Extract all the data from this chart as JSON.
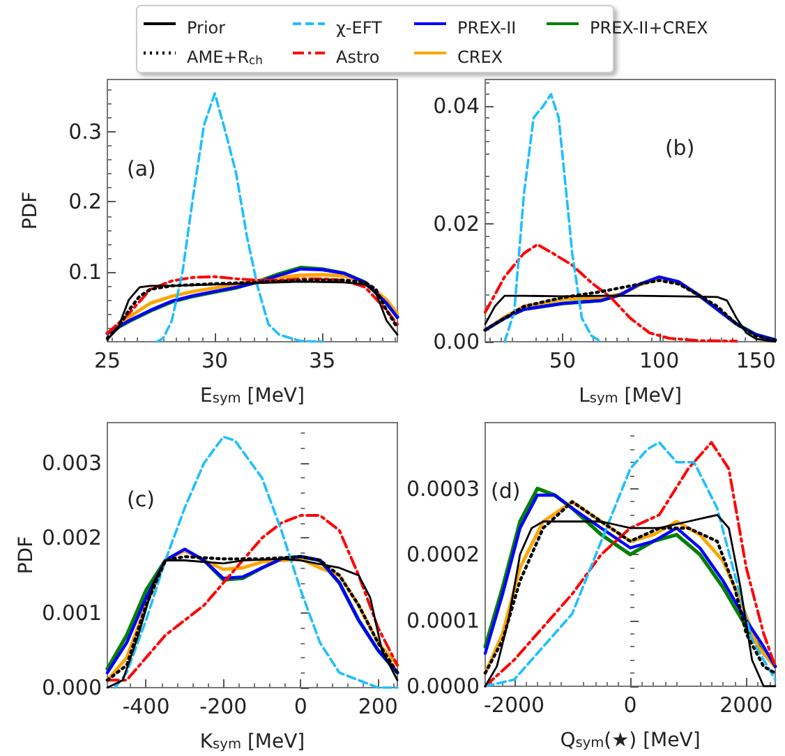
{
  "chart_data": [
    {
      "type": "line",
      "xlabel": "E$_{sym}$ [MeV]",
      "ylabel": "PDF",
      "annotations": [
        "(a)"
      ],
      "xlim": [
        25,
        38.5
      ],
      "ylim": [
        0,
        0.375
      ],
      "xticks": [
        25,
        30,
        35
      ],
      "yticks": [
        0.1,
        0.2,
        0.3
      ],
      "grid": false,
      "legend": "top",
      "marker": "none",
      "series": [
        {
          "name": "Prior",
          "color": "#000000",
          "line_style": "solid",
          "x": [
            25,
            25.5,
            26,
            26.5,
            27,
            28,
            30,
            32,
            34,
            36,
            37,
            37.5,
            38,
            38.5
          ],
          "values": [
            0.003,
            0.02,
            0.06,
            0.078,
            0.08,
            0.08,
            0.082,
            0.084,
            0.086,
            0.085,
            0.082,
            0.07,
            0.03,
            0.01
          ]
        },
        {
          "name": "AME+R$_{ch}$",
          "color": "#000000",
          "line_style": "dotted",
          "x": [
            25,
            25.5,
            26,
            26.5,
            27,
            28,
            30,
            32,
            34,
            36,
            37,
            37.5,
            38,
            38.5
          ],
          "values": [
            0.005,
            0.02,
            0.045,
            0.065,
            0.075,
            0.08,
            0.083,
            0.085,
            0.088,
            0.088,
            0.085,
            0.075,
            0.045,
            0.02
          ]
        },
        {
          "name": "χ-EFT",
          "color": "#1ebfff",
          "line_style": "dashed",
          "x": [
            27.3,
            27.6,
            28,
            28.5,
            29,
            29.5,
            30,
            30.5,
            31,
            31.5,
            32,
            32.5,
            33,
            34,
            35
          ],
          "values": [
            0,
            0.005,
            0.03,
            0.1,
            0.21,
            0.31,
            0.355,
            0.3,
            0.24,
            0.15,
            0.078,
            0.025,
            0.01,
            0.001,
            0
          ]
        },
        {
          "name": "Astro",
          "color": "#ff0000",
          "line_style": "dashdot",
          "x": [
            25,
            26,
            27,
            28,
            29,
            30,
            31,
            32,
            33,
            34,
            35,
            36,
            37,
            38,
            38.5
          ],
          "values": [
            0.012,
            0.04,
            0.075,
            0.087,
            0.092,
            0.093,
            0.09,
            0.088,
            0.088,
            0.09,
            0.09,
            0.088,
            0.078,
            0.045,
            0.025
          ]
        },
        {
          "name": "PREX-II",
          "color": "#0000ff",
          "line_style": "solid",
          "x": [
            25,
            26,
            27,
            28,
            29,
            30,
            31,
            32,
            33,
            34,
            35,
            36,
            37,
            38,
            38.5
          ],
          "values": [
            0.012,
            0.03,
            0.045,
            0.058,
            0.066,
            0.072,
            0.078,
            0.085,
            0.095,
            0.104,
            0.103,
            0.098,
            0.085,
            0.055,
            0.035
          ]
        },
        {
          "name": "CREX",
          "color": "#ffa500",
          "line_style": "solid",
          "x": [
            25,
            26,
            27,
            28,
            29,
            30,
            31,
            32,
            33,
            34,
            35,
            36,
            37,
            38,
            38.5
          ],
          "values": [
            0.012,
            0.035,
            0.055,
            0.065,
            0.072,
            0.077,
            0.082,
            0.087,
            0.092,
            0.095,
            0.096,
            0.094,
            0.085,
            0.06,
            0.04
          ]
        },
        {
          "name": "PREX-II+CREX",
          "color": "#008000",
          "line_style": "solid",
          "x": [
            25,
            26,
            27,
            28,
            29,
            30,
            31,
            32,
            33,
            34,
            35,
            36,
            37,
            38,
            38.5
          ],
          "values": [
            0.012,
            0.029,
            0.044,
            0.057,
            0.065,
            0.071,
            0.077,
            0.086,
            0.097,
            0.106,
            0.104,
            0.098,
            0.085,
            0.055,
            0.035
          ]
        }
      ]
    },
    {
      "type": "line",
      "xlabel": "L$_{sym}$ [MeV]",
      "annotations": [
        "(b)"
      ],
      "xlim": [
        10,
        160
      ],
      "ylim": [
        0,
        0.0445
      ],
      "xticks": [
        50,
        100,
        150
      ],
      "yticks": [
        {
          "value": 0,
          "label": "0.00"
        },
        {
          "value": 0.02,
          "label": "0.02"
        },
        {
          "value": 0.04,
          "label": "0.04"
        }
      ],
      "grid": false,
      "marker": "none",
      "series": [
        {
          "color": "#000000",
          "line_style": "solid",
          "x": [
            10,
            15,
            20,
            30,
            50,
            70,
            90,
            110,
            130,
            135,
            140,
            145,
            150,
            160
          ],
          "values": [
            0.003,
            0.006,
            0.0078,
            0.0078,
            0.0077,
            0.0078,
            0.0078,
            0.0077,
            0.0076,
            0.007,
            0.004,
            0.0015,
            0.0005,
            0
          ]
        },
        {
          "color": "#000000",
          "line_style": "dotted",
          "x": [
            10,
            20,
            30,
            50,
            70,
            90,
            100,
            110,
            120,
            130,
            140,
            150,
            160
          ],
          "values": [
            0.002,
            0.004,
            0.006,
            0.0075,
            0.0085,
            0.0098,
            0.0104,
            0.0098,
            0.008,
            0.006,
            0.003,
            0.001,
            0.0002
          ]
        },
        {
          "color": "#1ebfff",
          "line_style": "dashed",
          "x": [
            20,
            25,
            30,
            35,
            40,
            44,
            48,
            52,
            55,
            60,
            65,
            70
          ],
          "values": [
            0,
            0.005,
            0.025,
            0.038,
            0.04,
            0.042,
            0.038,
            0.025,
            0.015,
            0.004,
            0.001,
            0
          ]
        },
        {
          "color": "#ff0000",
          "line_style": "dashdot",
          "x": [
            10,
            15,
            20,
            30,
            37,
            45,
            55,
            65,
            75,
            85,
            95,
            105,
            120,
            140
          ],
          "values": [
            0.005,
            0.008,
            0.011,
            0.015,
            0.0165,
            0.015,
            0.013,
            0.01,
            0.0075,
            0.004,
            0.0015,
            0.0006,
            0.0002,
            0.0001
          ]
        },
        {
          "color": "#0000ff",
          "line_style": "solid",
          "x": [
            10,
            20,
            30,
            50,
            70,
            80,
            90,
            100,
            110,
            120,
            130,
            140,
            150,
            160
          ],
          "values": [
            0.002,
            0.004,
            0.0055,
            0.0065,
            0.007,
            0.008,
            0.0098,
            0.011,
            0.0102,
            0.008,
            0.0055,
            0.003,
            0.0012,
            0.0003
          ]
        },
        {
          "color": "#ffa500",
          "line_style": "solid",
          "x": [
            10,
            20,
            30,
            50,
            70,
            80,
            90,
            100,
            110,
            120,
            130,
            140
          ],
          "values": [
            0.002,
            0.0042,
            0.006,
            0.0072,
            0.0075,
            0.0081,
            0.0097,
            0.0108,
            0.01,
            0.008,
            0.0056,
            0.003
          ]
        },
        {
          "color": "#008000",
          "line_style": "solid",
          "x": [
            10,
            20,
            30,
            50,
            70,
            80,
            90,
            100,
            110,
            120,
            130,
            140,
            150,
            160
          ],
          "values": [
            0.002,
            0.004,
            0.0055,
            0.0065,
            0.007,
            0.008,
            0.0097,
            0.0108,
            0.0101,
            0.008,
            0.0055,
            0.003,
            0.0012,
            0.0003
          ]
        }
      ]
    },
    {
      "type": "line",
      "xlabel": "K$_{sym}$ [MeV]",
      "ylabel": "PDF",
      "annotations": [
        "(c)"
      ],
      "xlim": [
        -500,
        250
      ],
      "ylim": [
        0,
        0.00354
      ],
      "xticks": [
        -400,
        -200,
        0,
        200
      ],
      "yticks": [
        {
          "value": 0,
          "label": "0.000"
        },
        {
          "value": 0.001,
          "label": "0.001"
        },
        {
          "value": 0.002,
          "label": "0.002"
        },
        {
          "value": 0.003,
          "label": "0.003"
        }
      ],
      "grid": false,
      "marker": "none",
      "series": [
        {
          "color": "#000000",
          "line_style": "solid",
          "x": [
            -500,
            -460,
            -420,
            -380,
            -350,
            -300,
            -200,
            -150,
            -50,
            0,
            50,
            100,
            150,
            180,
            210,
            250
          ],
          "values": [
            0,
            0.0001,
            0.0007,
            0.0014,
            0.0017,
            0.0017,
            0.00166,
            0.0017,
            0.00172,
            0.0017,
            0.00165,
            0.0016,
            0.0015,
            0.0012,
            0.0005,
            0.0001
          ]
        },
        {
          "color": "#000000",
          "line_style": "dotted",
          "x": [
            -500,
            -450,
            -400,
            -350,
            -300,
            -200,
            -100,
            0,
            50,
            100,
            150,
            200,
            250
          ],
          "values": [
            0.0001,
            0.0003,
            0.0011,
            0.0017,
            0.00175,
            0.00172,
            0.00172,
            0.00175,
            0.0017,
            0.0015,
            0.0011,
            0.0006,
            0.0002
          ]
        },
        {
          "color": "#1ebfff",
          "line_style": "dashed",
          "x": [
            -480,
            -450,
            -400,
            -350,
            -300,
            -250,
            -200,
            -170,
            -100,
            -50,
            0,
            50,
            100,
            150,
            200,
            250
          ],
          "values": [
            0,
            0.0002,
            0.0009,
            0.0017,
            0.0024,
            0.003,
            0.00335,
            0.0033,
            0.0028,
            0.0021,
            0.0013,
            0.0006,
            0.0002,
            0.0001,
            0,
            0
          ]
        },
        {
          "color": "#ff0000",
          "line_style": "dashdot",
          "x": [
            -500,
            -450,
            -400,
            -350,
            -300,
            -250,
            -200,
            -150,
            -100,
            -50,
            0,
            50,
            100,
            150,
            200,
            250
          ],
          "values": [
            0.0001,
            0.0001,
            0.0004,
            0.0007,
            0.0009,
            0.0011,
            0.0014,
            0.0017,
            0.002,
            0.0022,
            0.0023,
            0.0023,
            0.0021,
            0.0015,
            0.0008,
            0.0003
          ]
        },
        {
          "color": "#0000ff",
          "line_style": "solid",
          "x": [
            -500,
            -450,
            -400,
            -350,
            -300,
            -250,
            -200,
            -150,
            -100,
            -50,
            0,
            50,
            100,
            150,
            200,
            250
          ],
          "values": [
            0.0002,
            0.0006,
            0.0012,
            0.0017,
            0.00185,
            0.0017,
            0.00146,
            0.00148,
            0.0016,
            0.00172,
            0.00175,
            0.0017,
            0.0014,
            0.0009,
            0.0005,
            0.0002
          ]
        },
        {
          "color": "#ffa500",
          "line_style": "solid",
          "x": [
            -500,
            -450,
            -400,
            -350,
            -300,
            -250,
            -200,
            -150,
            -100,
            -50,
            0,
            50,
            100,
            150,
            200,
            250
          ],
          "values": [
            0.0001,
            0.0004,
            0.0011,
            0.0017,
            0.00183,
            0.0017,
            0.00158,
            0.0016,
            0.00168,
            0.0017,
            0.00172,
            0.0016,
            0.0015,
            0.0011,
            0.0006,
            0.0003
          ]
        },
        {
          "color": "#008000",
          "line_style": "solid",
          "x": [
            -500,
            -450,
            -400,
            -350,
            -300,
            -250,
            -200,
            -150,
            -100,
            -50,
            0,
            50,
            100,
            150,
            200,
            250
          ],
          "values": [
            0.00025,
            0.0007,
            0.0013,
            0.0017,
            0.00184,
            0.0017,
            0.00144,
            0.00146,
            0.0016,
            0.00172,
            0.00175,
            0.0017,
            0.0014,
            0.0009,
            0.0005,
            0.0002
          ]
        }
      ]
    },
    {
      "type": "line",
      "xlabel": "Q$_{sym}$(★) [MeV]",
      "annotations": [
        "(d)"
      ],
      "xlim": [
        -2500,
        2500
      ],
      "ylim": [
        0,
        0.0004
      ],
      "xticks": [
        -2000,
        0,
        2000
      ],
      "yticks": [
        {
          "value": 0,
          "label": "0.0000"
        },
        {
          "value": 0.0001,
          "label": "0.0001"
        },
        {
          "value": 0.0002,
          "label": "0.0002"
        },
        {
          "value": 0.0003,
          "label": "0.0003"
        }
      ],
      "grid": false,
      "marker": "none",
      "series": [
        {
          "color": "#000000",
          "line_style": "solid",
          "x": [
            -2500,
            -2300,
            -2100,
            -1900,
            -1700,
            -1500,
            -1000,
            -500,
            0,
            500,
            1000,
            1500,
            1700,
            1900,
            2100,
            2300,
            2500
          ],
          "values": [
            0,
            3e-05,
            0.0001,
            0.0002,
            0.00024,
            0.00025,
            0.00025,
            0.00025,
            0.00024,
            0.00024,
            0.00025,
            0.00026,
            0.00024,
            0.00015,
            4e-05,
            0,
            0
          ]
        },
        {
          "color": "#000000",
          "line_style": "dotted",
          "x": [
            -2500,
            -2200,
            -1900,
            -1500,
            -1000,
            -500,
            0,
            500,
            1000,
            1500,
            1800,
            2000,
            2300,
            2500
          ],
          "values": [
            2e-05,
            7e-05,
            0.00016,
            0.00024,
            0.00028,
            0.00025,
            0.00022,
            0.00024,
            0.00024,
            0.00022,
            0.00015,
            8e-05,
            3e-05,
            2e-05
          ]
        },
        {
          "color": "#1ebfff",
          "line_style": "dashed",
          "x": [
            -2500,
            -2000,
            -1500,
            -1000,
            -500,
            0,
            300,
            500,
            800,
            1100,
            1500,
            1800,
            2100,
            2500
          ],
          "values": [
            0,
            1e-05,
            6e-05,
            0.00011,
            0.00022,
            0.00033,
            0.00036,
            0.00037,
            0.00034,
            0.00034,
            0.00027,
            0.00017,
            7e-05,
            1e-05
          ]
        },
        {
          "color": "#ff0000",
          "line_style": "dashdot",
          "x": [
            -2500,
            -2000,
            -1500,
            -1000,
            -500,
            0,
            500,
            1000,
            1400,
            1700,
            2000,
            2300,
            2500
          ],
          "values": [
            0,
            4e-05,
            9e-05,
            0.00014,
            0.0002,
            0.00024,
            0.00026,
            0.00033,
            0.00037,
            0.00033,
            0.00018,
            8e-05,
            3e-05
          ]
        },
        {
          "color": "#0000ff",
          "line_style": "solid",
          "x": [
            -2500,
            -2200,
            -1900,
            -1600,
            -1300,
            -1000,
            -500,
            0,
            400,
            800,
            1200,
            1600,
            2000,
            2300,
            2500
          ],
          "values": [
            5e-05,
            0.00014,
            0.00024,
            0.00029,
            0.00029,
            0.00027,
            0.00024,
            0.00021,
            0.00022,
            0.00024,
            0.00021,
            0.00016,
            0.0001,
            6e-05,
            3e-05
          ]
        },
        {
          "color": "#ffa500",
          "line_style": "solid",
          "x": [
            -2500,
            -2200,
            -1900,
            -1500,
            -1000,
            -500,
            0,
            400,
            800,
            1200,
            1600,
            1900,
            2200,
            2500
          ],
          "values": [
            2e-05,
            8e-05,
            0.00018,
            0.00025,
            0.00028,
            0.00025,
            0.00022,
            0.00023,
            0.00025,
            0.00023,
            0.00019,
            0.00013,
            6e-05,
            3e-05
          ]
        },
        {
          "color": "#008000",
          "line_style": "solid",
          "x": [
            -2500,
            -2200,
            -1900,
            -1600,
            -1300,
            -1000,
            -500,
            0,
            400,
            800,
            1200,
            1600,
            2000,
            2300,
            2500
          ],
          "values": [
            6e-05,
            0.00015,
            0.00025,
            0.0003,
            0.00029,
            0.00027,
            0.00023,
            0.0002,
            0.00022,
            0.00023,
            0.0002,
            0.00015,
            9e-05,
            5e-05,
            3e-05
          ]
        }
      ]
    }
  ]
}
